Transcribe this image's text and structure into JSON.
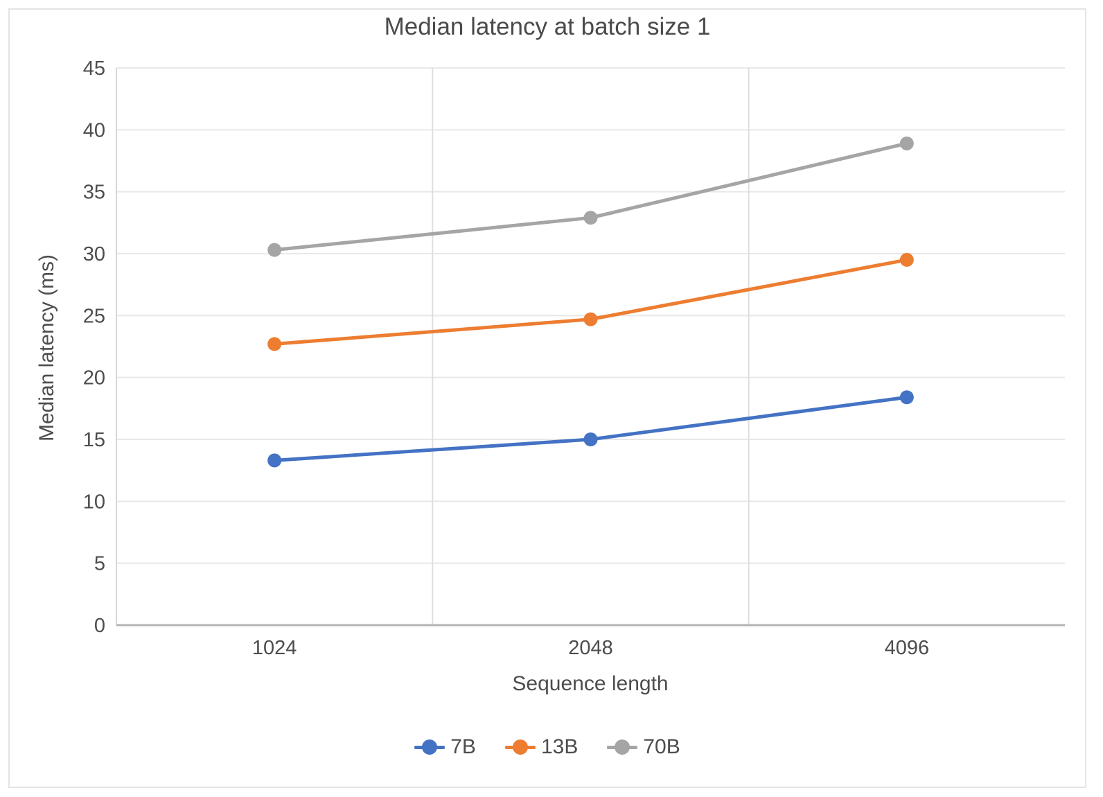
{
  "chart_data": {
    "type": "line",
    "title": "Median latency at batch size 1",
    "xlabel": "Sequence length",
    "ylabel": "Median latency (ms)",
    "categories": [
      "1024",
      "2048",
      "4096"
    ],
    "series": [
      {
        "name": "7B",
        "color": "#4472C4",
        "values": [
          13.3,
          15.0,
          18.4
        ]
      },
      {
        "name": "13B",
        "color": "#ED7D31",
        "values": [
          22.7,
          24.7,
          29.5
        ]
      },
      {
        "name": "70B",
        "color": "#A5A5A5",
        "values": [
          30.3,
          32.9,
          38.9
        ]
      }
    ],
    "ylim": [
      0,
      45
    ],
    "yticks": [
      0,
      5,
      10,
      15,
      20,
      25,
      30,
      35,
      40,
      45
    ],
    "grid": true,
    "legend_position": "bottom",
    "marker": "circle"
  }
}
